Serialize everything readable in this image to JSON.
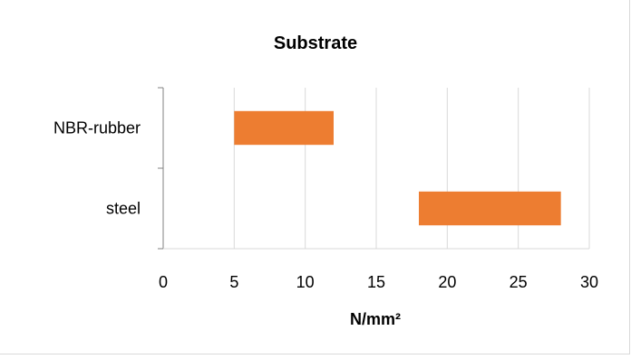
{
  "chart_data": {
    "type": "bar",
    "orientation": "horizontal",
    "subtype": "floating-range",
    "title": "Substrate",
    "xlabel": "N/mm²",
    "ylabel": "",
    "categories": [
      "NBR-rubber",
      "steel"
    ],
    "ranges": [
      {
        "category": "NBR-rubber",
        "start": 5,
        "end": 12
      },
      {
        "category": "steel",
        "start": 18,
        "end": 28
      }
    ],
    "xlim": [
      0,
      30
    ],
    "xticks": [
      0,
      5,
      10,
      15,
      20,
      25,
      30
    ],
    "xtick_labels": [
      "0",
      "5",
      "10",
      "15",
      "20",
      "25",
      "30"
    ],
    "grid": "vertical",
    "legend": "none",
    "bar_color": "#ED7D31",
    "grid_color": "#D9D9D9",
    "axis_color": "#808080"
  }
}
